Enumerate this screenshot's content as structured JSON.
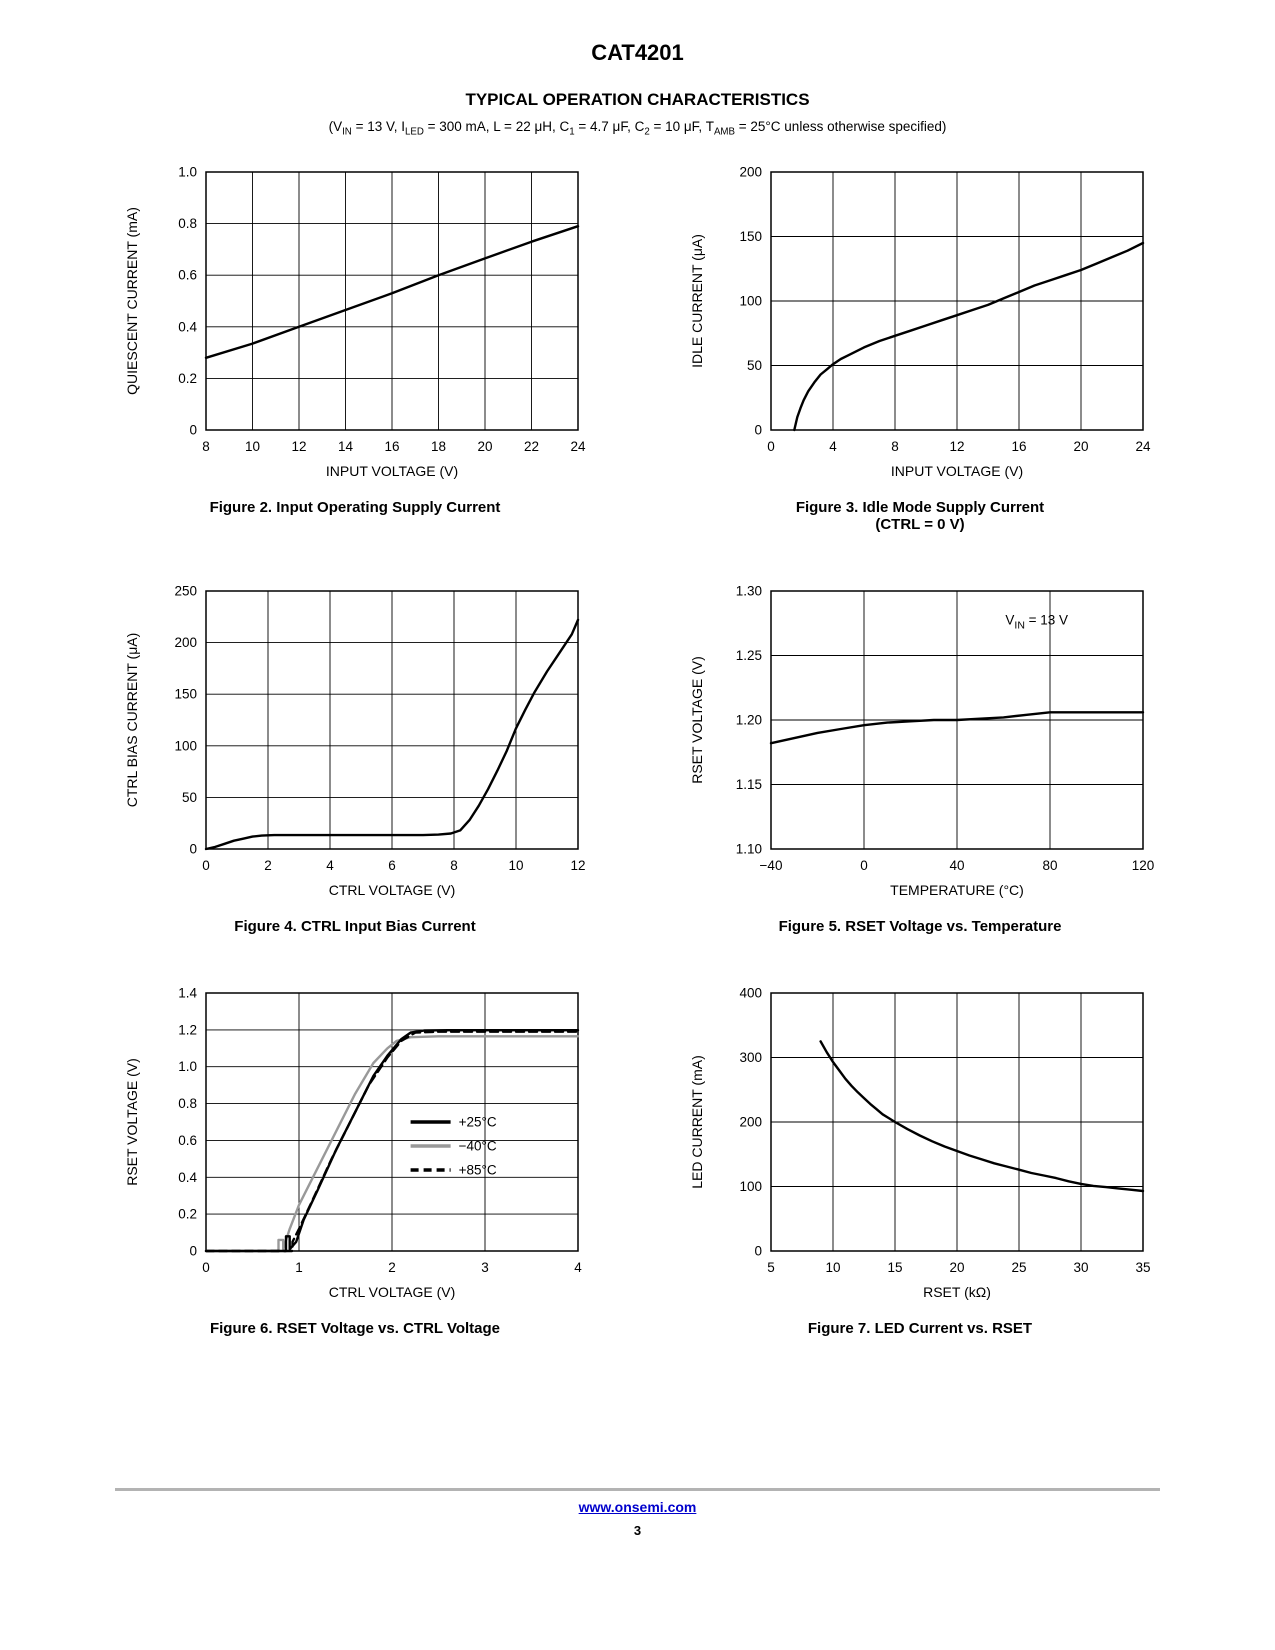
{
  "header": {
    "product": "CAT4201",
    "section_title": "TYPICAL OPERATION CHARACTERISTICS",
    "conditions_runs": [
      {
        "t": "(V"
      },
      {
        "t": "IN",
        "sub": true
      },
      {
        "t": " = 13 V, I"
      },
      {
        "t": "LED",
        "sub": true
      },
      {
        "t": " = 300 mA, L = 22 μH, C"
      },
      {
        "t": "1",
        "sub": true
      },
      {
        "t": " = 4.7 μF, C"
      },
      {
        "t": "2",
        "sub": true
      },
      {
        "t": " = 10 μF, T"
      },
      {
        "t": "AMB",
        "sub": true
      },
      {
        "t": " = 25°C unless otherwise specified)"
      }
    ]
  },
  "footer": {
    "link": "www.onsemi.com",
    "link_color": "#0000CC",
    "page_number": "3"
  },
  "colors": {
    "line_black": "#000000",
    "line_gray": "#999999"
  },
  "chart_data": [
    {
      "type": "line",
      "title": "Figure 2. Input Operating Supply Current",
      "xlabel": "INPUT VOLTAGE (V)",
      "ylabel": "QUIESCENT CURRENT (mA)",
      "xlim": [
        8,
        24
      ],
      "ylim": [
        0,
        1.0
      ],
      "xticks": [
        8,
        10,
        12,
        14,
        16,
        18,
        20,
        22,
        24
      ],
      "xtick_labels": [
        "8",
        "10",
        "12",
        "14",
        "16",
        "18",
        "20",
        "22",
        "24"
      ],
      "yticks": [
        0,
        0.2,
        0.4,
        0.6,
        0.8,
        1.0
      ],
      "ytick_labels": [
        "0",
        "0.2",
        "0.4",
        "0.6",
        "0.8",
        "1.0"
      ],
      "series": [
        {
          "id": "main",
          "name": "quiescent current",
          "color": "#000000",
          "dash": null,
          "points": [
            [
              8,
              0.28
            ],
            [
              10,
              0.335
            ],
            [
              12,
              0.4
            ],
            [
              14,
              0.465
            ],
            [
              16,
              0.53
            ],
            [
              18,
              0.6
            ],
            [
              20,
              0.665
            ],
            [
              22,
              0.73
            ],
            [
              24,
              0.79
            ]
          ]
        }
      ]
    },
    {
      "type": "line",
      "title": "Figure 3. Idle Mode Supply Current\n(CTRL = 0 V)",
      "xlabel": "INPUT VOLTAGE (V)",
      "ylabel": "IDLE CURRENT (μA)",
      "xlim": [
        0,
        24
      ],
      "ylim": [
        0,
        200
      ],
      "xticks": [
        0,
        4,
        8,
        12,
        16,
        20,
        24
      ],
      "xtick_labels": [
        "0",
        "4",
        "8",
        "12",
        "16",
        "20",
        "24"
      ],
      "yticks": [
        0,
        50,
        100,
        150,
        200
      ],
      "ytick_labels": [
        "0",
        "50",
        "100",
        "150",
        "200"
      ],
      "series": [
        {
          "id": "main",
          "name": "idle current",
          "color": "#000000",
          "dash": null,
          "points": [
            [
              1.5,
              0
            ],
            [
              1.6,
              5
            ],
            [
              1.7,
              10
            ],
            [
              1.9,
              17
            ],
            [
              2.1,
              23
            ],
            [
              2.4,
              30
            ],
            [
              2.8,
              37
            ],
            [
              3.2,
              43
            ],
            [
              3.6,
              47
            ],
            [
              4,
              51
            ],
            [
              4.5,
              55
            ],
            [
              5,
              58
            ],
            [
              6,
              64
            ],
            [
              7,
              69
            ],
            [
              8,
              73
            ],
            [
              9,
              77
            ],
            [
              10,
              81
            ],
            [
              11,
              85
            ],
            [
              12,
              89
            ],
            [
              13,
              93
            ],
            [
              14,
              97
            ],
            [
              15,
              102
            ],
            [
              16,
              107
            ],
            [
              17,
              112
            ],
            [
              18,
              116
            ],
            [
              19,
              120
            ],
            [
              20,
              124
            ],
            [
              21,
              129
            ],
            [
              22,
              134
            ],
            [
              23,
              139
            ],
            [
              24,
              145
            ]
          ]
        }
      ]
    },
    {
      "type": "line",
      "title": "Figure 4. CTRL Input Bias Current",
      "xlabel": "CTRL VOLTAGE (V)",
      "ylabel": "CTRL BIAS CURRENT (μA)",
      "xlim": [
        0,
        12
      ],
      "ylim": [
        0,
        250
      ],
      "xticks": [
        0,
        2,
        4,
        6,
        8,
        10,
        12
      ],
      "xtick_labels": [
        "0",
        "2",
        "4",
        "6",
        "8",
        "10",
        "12"
      ],
      "yticks": [
        0,
        50,
        100,
        150,
        200,
        250
      ],
      "ytick_labels": [
        "0",
        "50",
        "100",
        "150",
        "200",
        "250"
      ],
      "series": [
        {
          "id": "main",
          "name": "ctrl bias current",
          "color": "#000000",
          "dash": null,
          "points": [
            [
              0,
              0
            ],
            [
              0.3,
              2
            ],
            [
              0.6,
              5
            ],
            [
              0.9,
              8
            ],
            [
              1.2,
              10
            ],
            [
              1.5,
              12
            ],
            [
              1.8,
              13
            ],
            [
              2.2,
              13.5
            ],
            [
              3,
              13.5
            ],
            [
              4,
              13.5
            ],
            [
              5,
              13.5
            ],
            [
              6,
              13.5
            ],
            [
              7,
              13.5
            ],
            [
              7.5,
              14
            ],
            [
              7.9,
              15
            ],
            [
              8.2,
              18
            ],
            [
              8.5,
              28
            ],
            [
              8.8,
              42
            ],
            [
              9.1,
              58
            ],
            [
              9.4,
              76
            ],
            [
              9.7,
              95
            ],
            [
              10,
              117
            ],
            [
              10.3,
              135
            ],
            [
              10.6,
              152
            ],
            [
              11,
              172
            ],
            [
              11.4,
              190
            ],
            [
              11.8,
              208
            ],
            [
              12,
              222
            ]
          ]
        }
      ]
    },
    {
      "type": "line",
      "title": "Figure 5. RSET Voltage vs. Temperature",
      "xlabel": "TEMPERATURE (°C)",
      "ylabel": "RSET VOLTAGE (V)",
      "xlim": [
        -40,
        120
      ],
      "ylim": [
        1.1,
        1.3
      ],
      "xticks": [
        -40,
        0,
        40,
        80,
        120
      ],
      "xtick_labels": [
        "−40",
        "0",
        "40",
        "80",
        "120"
      ],
      "yticks": [
        1.1,
        1.15,
        1.2,
        1.25,
        1.3
      ],
      "ytick_labels": [
        "1.10",
        "1.15",
        "1.20",
        "1.25",
        "1.30"
      ],
      "annotation": {
        "fx": 0.63,
        "fy": 0.13,
        "runs": [
          {
            "t": "V"
          },
          {
            "t": "IN",
            "sub": true
          },
          {
            "t": " = 13 V"
          }
        ]
      },
      "series": [
        {
          "id": "main",
          "name": "rset voltage",
          "color": "#000000",
          "dash": null,
          "points": [
            [
              -40,
              1.182
            ],
            [
              -30,
              1.186
            ],
            [
              -20,
              1.19
            ],
            [
              -10,
              1.193
            ],
            [
              0,
              1.196
            ],
            [
              10,
              1.198
            ],
            [
              20,
              1.199
            ],
            [
              30,
              1.2
            ],
            [
              40,
              1.2
            ],
            [
              50,
              1.201
            ],
            [
              60,
              1.202
            ],
            [
              70,
              1.204
            ],
            [
              80,
              1.206
            ],
            [
              90,
              1.206
            ],
            [
              100,
              1.206
            ],
            [
              110,
              1.206
            ],
            [
              120,
              1.206
            ]
          ]
        }
      ]
    },
    {
      "type": "line",
      "title": "Figure 6. RSET Voltage vs. CTRL Voltage",
      "xlabel": "CTRL VOLTAGE (V)",
      "ylabel": "RSET VOLTAGE (V)",
      "xlim": [
        0,
        4
      ],
      "ylim": [
        0,
        1.4
      ],
      "xticks": [
        0,
        1,
        2,
        3,
        4
      ],
      "xtick_labels": [
        "0",
        "1",
        "2",
        "3",
        "4"
      ],
      "yticks": [
        0,
        0.2,
        0.4,
        0.6,
        0.8,
        1.0,
        1.2,
        1.4
      ],
      "ytick_labels": [
        "0",
        "0.2",
        "0.4",
        "0.6",
        "0.8",
        "1.0",
        "1.2",
        "1.4"
      ],
      "legend": {
        "fx": 0.55,
        "fy": 0.5,
        "entries": [
          {
            "label": "+25°C",
            "color": "#000000",
            "dash": null
          },
          {
            "label": "−40°C",
            "color": "#999999",
            "dash": null
          },
          {
            "label": "+85°C",
            "color": "#000000",
            "dash": "8,5"
          }
        ]
      },
      "series": [
        {
          "id": "minus40c",
          "name": "−40°C",
          "color": "#999999",
          "dash": null,
          "points": [
            [
              0,
              0
            ],
            [
              0.78,
              0
            ],
            [
              0.78,
              0.06
            ],
            [
              0.83,
              0.06
            ],
            [
              0.83,
              0.01
            ],
            [
              0.9,
              0.12
            ],
            [
              1.0,
              0.25
            ],
            [
              1.2,
              0.45
            ],
            [
              1.4,
              0.65
            ],
            [
              1.6,
              0.85
            ],
            [
              1.8,
              1.02
            ],
            [
              1.95,
              1.1
            ],
            [
              2.05,
              1.14
            ],
            [
              2.2,
              1.16
            ],
            [
              2.5,
              1.165
            ],
            [
              3,
              1.165
            ],
            [
              4,
              1.165
            ]
          ]
        },
        {
          "id": "plus85c",
          "name": "+85°C",
          "color": "#000000",
          "dash": "8,5",
          "points": [
            [
              0,
              0
            ],
            [
              0.93,
              0
            ],
            [
              0.93,
              0.05
            ],
            [
              1.0,
              0.12
            ],
            [
              1.15,
              0.28
            ],
            [
              1.35,
              0.5
            ],
            [
              1.55,
              0.7
            ],
            [
              1.75,
              0.9
            ],
            [
              1.95,
              1.05
            ],
            [
              2.1,
              1.14
            ],
            [
              2.25,
              1.185
            ],
            [
              2.5,
              1.19
            ],
            [
              3,
              1.19
            ],
            [
              4,
              1.19
            ]
          ]
        },
        {
          "id": "plus25c",
          "name": "+25°C",
          "color": "#000000",
          "dash": null,
          "points": [
            [
              0,
              0
            ],
            [
              0.86,
              0
            ],
            [
              0.86,
              0.08
            ],
            [
              0.9,
              0.08
            ],
            [
              0.9,
              0.01
            ],
            [
              0.97,
              0.05
            ],
            [
              1.05,
              0.17
            ],
            [
              1.2,
              0.33
            ],
            [
              1.4,
              0.55
            ],
            [
              1.6,
              0.75
            ],
            [
              1.8,
              0.95
            ],
            [
              1.95,
              1.06
            ],
            [
              2.1,
              1.15
            ],
            [
              2.2,
              1.185
            ],
            [
              2.35,
              1.197
            ],
            [
              2.6,
              1.198
            ],
            [
              3,
              1.198
            ],
            [
              4,
              1.198
            ]
          ]
        }
      ]
    },
    {
      "type": "line",
      "title": "Figure 7. LED Current vs. RSET",
      "xlabel": "RSET (kΩ)",
      "ylabel": "LED CURRENT (mA)",
      "xlim": [
        5,
        35
      ],
      "ylim": [
        0,
        400
      ],
      "xticks": [
        5,
        10,
        15,
        20,
        25,
        30,
        35
      ],
      "xtick_labels": [
        "5",
        "10",
        "15",
        "20",
        "25",
        "30",
        "35"
      ],
      "yticks": [
        0,
        100,
        200,
        300,
        400
      ],
      "ytick_labels": [
        "0",
        "100",
        "200",
        "300",
        "400"
      ],
      "series": [
        {
          "id": "main",
          "name": "led current",
          "color": "#000000",
          "dash": null,
          "points": [
            [
              9,
              325
            ],
            [
              9.5,
              308
            ],
            [
              10,
              293
            ],
            [
              10.5,
              280
            ],
            [
              11,
              267
            ],
            [
              11.5,
              256
            ],
            [
              12,
              246
            ],
            [
              12.5,
              237
            ],
            [
              13,
              228
            ],
            [
              13.5,
              220
            ],
            [
              14,
              212
            ],
            [
              14.5,
              206
            ],
            [
              15,
              200
            ],
            [
              16,
              189
            ],
            [
              17,
              179
            ],
            [
              18,
              170
            ],
            [
              19,
              162
            ],
            [
              20,
              155
            ],
            [
              21,
              148
            ],
            [
              22,
              142
            ],
            [
              23,
              136
            ],
            [
              24,
              131
            ],
            [
              25,
              126
            ],
            [
              26,
              121
            ],
            [
              27,
              117
            ],
            [
              28,
              113
            ],
            [
              29,
              108
            ],
            [
              30,
              104
            ],
            [
              31,
              101
            ],
            [
              32,
              99
            ],
            [
              33,
              97
            ],
            [
              34,
              95
            ],
            [
              35,
              93
            ]
          ]
        }
      ]
    }
  ]
}
